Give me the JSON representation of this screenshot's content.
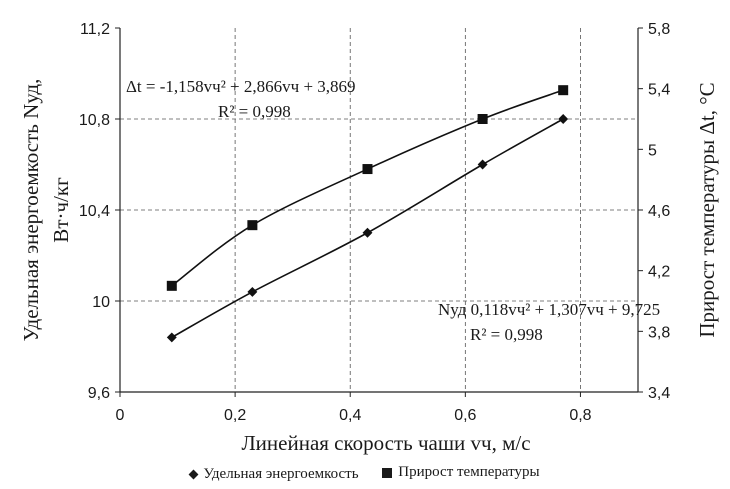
{
  "chart_data": {
    "type": "line",
    "x": [
      0.09,
      0.23,
      0.43,
      0.63,
      0.77
    ],
    "xlabel": "Линейная скорость  чаши vч, м/с",
    "xlim": [
      0,
      0.9
    ],
    "xticks": [
      "0",
      "0,2",
      "0,4",
      "0,6",
      "0,8"
    ],
    "ylabel_left_line1": "Удельная энергоемкость Nуд,",
    "ylabel_left_line2": "Вт·ч/кг",
    "ylim_left": [
      9.6,
      11.2
    ],
    "yticks_left": [
      "9,6",
      "10",
      "10,4",
      "10,8",
      "11,2"
    ],
    "ylabel_right": "Прирост температуры Δt, °С",
    "ylim_right": [
      3.4,
      5.8
    ],
    "yticks_right": [
      "3,4",
      "3,8",
      "4,2",
      "4,6",
      "5",
      "5,4",
      "5,8"
    ],
    "grid": true,
    "legend_position": "bottom",
    "series": [
      {
        "name": "Удельная энергоемкость",
        "axis": "left",
        "marker": "diamond",
        "values": [
          9.84,
          10.04,
          10.3,
          10.6,
          10.8
        ],
        "equation": "Nуд   0,118vч² + 1,307vч + 9,725",
        "r2": "R² = 0,998"
      },
      {
        "name": "Прирост температуры",
        "axis": "right",
        "marker": "square",
        "values": [
          4.1,
          4.5,
          4.87,
          5.2,
          5.39
        ],
        "equation": "Δt = -1,158vч² + 2,866vч + 3,869",
        "r2": "R² = 0,998"
      }
    ]
  }
}
